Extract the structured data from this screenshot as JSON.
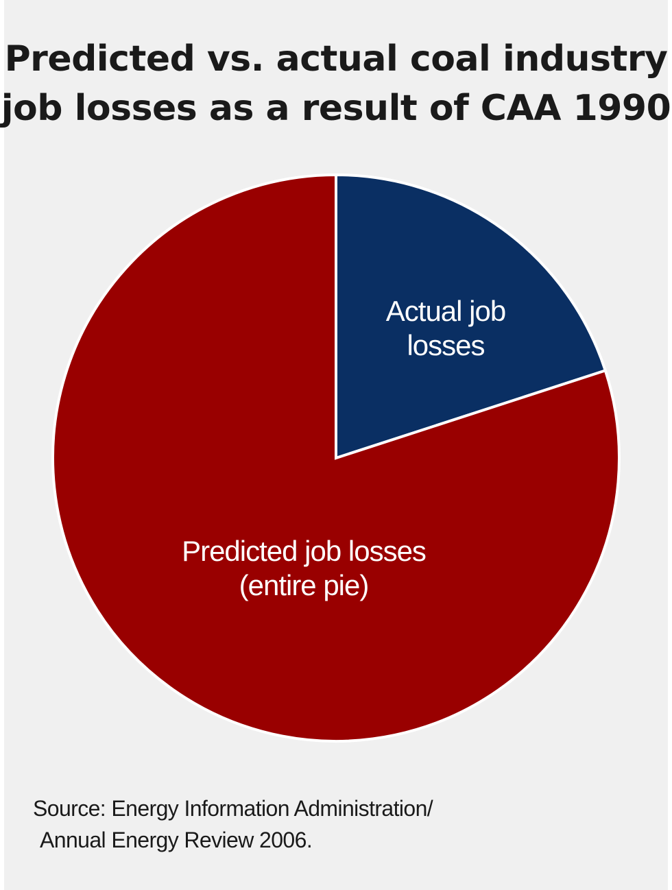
{
  "title": {
    "line1": "Predicted vs. actual coal industry",
    "line2": "job losses as a result of CAA 1990"
  },
  "source": {
    "line1": "Source: Energy Information Administration/",
    "line2": "Annual Energy Review 2006."
  },
  "colors": {
    "predicted": "#990000",
    "actual": "#0a2f63",
    "label": "#ffffff",
    "background": "#f0f0f0"
  },
  "chart_data": {
    "type": "pie",
    "title": "Predicted vs. actual coal industry job losses as a result of CAA 1990",
    "slices": [
      {
        "label_lines": [
          "Actual job",
          "losses"
        ],
        "value": 20,
        "color": "#0a2f63"
      },
      {
        "label_lines": [
          "Predicted job losses",
          "(entire pie)"
        ],
        "value": 80,
        "color": "#990000"
      }
    ],
    "source": "Source: Energy Information Administration/ Annual Energy Review 2006."
  }
}
